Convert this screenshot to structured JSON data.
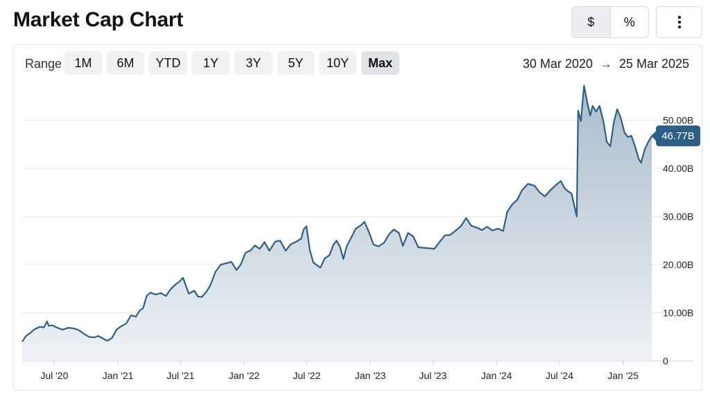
{
  "page": {
    "title": "Market Cap Chart"
  },
  "toggles": [
    {
      "label": "$",
      "active": true
    },
    {
      "label": "%",
      "active": false
    }
  ],
  "menu": {
    "icon": "more-vertical-icon"
  },
  "range": {
    "label": "Range",
    "buttons": [
      {
        "label": "1M",
        "active": false
      },
      {
        "label": "6M",
        "active": false
      },
      {
        "label": "YTD",
        "active": false
      },
      {
        "label": "1Y",
        "active": false
      },
      {
        "label": "3Y",
        "active": false
      },
      {
        "label": "5Y",
        "active": false
      },
      {
        "label": "10Y",
        "active": false
      },
      {
        "label": "Max",
        "active": true
      }
    ],
    "start": "30 Mar 2020",
    "arrow": "→",
    "end": "25 Mar 2025"
  },
  "chart_data": {
    "type": "area",
    "title": "",
    "xlabel": "",
    "ylabel": "",
    "unit": "B",
    "x_range": [
      "2020-03-30",
      "2025-03-25"
    ],
    "ylim": [
      0,
      57
    ],
    "y_ticks": [
      {
        "value": 0,
        "label": "0"
      },
      {
        "value": 10,
        "label": "10.00B"
      },
      {
        "value": 20,
        "label": "20.00B"
      },
      {
        "value": 30,
        "label": "30.00B"
      },
      {
        "value": 40,
        "label": "40.00B"
      },
      {
        "value": 50,
        "label": "50.00B"
      }
    ],
    "x_ticks": [
      {
        "date": "2020-07-01",
        "label": "Jul '20"
      },
      {
        "date": "2021-01-01",
        "label": "Jan '21"
      },
      {
        "date": "2021-07-01",
        "label": "Jul '21"
      },
      {
        "date": "2022-01-01",
        "label": "Jan '22"
      },
      {
        "date": "2022-07-01",
        "label": "Jul '22"
      },
      {
        "date": "2023-01-01",
        "label": "Jan '23"
      },
      {
        "date": "2023-07-01",
        "label": "Jul '23"
      },
      {
        "date": "2024-01-01",
        "label": "Jan '24"
      },
      {
        "date": "2024-07-01",
        "label": "Jul '24"
      },
      {
        "date": "2025-01-01",
        "label": "Jan '25"
      }
    ],
    "grid": true,
    "colors": {
      "line": "#2d5f86",
      "fill_top": "#a9bccc",
      "fill_bottom": "#eef2f6",
      "grid": "#e4e7eb",
      "badge": "#2d5f86"
    },
    "current_value_label": "46.77B",
    "series": [
      {
        "points": [
          [
            "2020-03-30",
            4.0
          ],
          [
            "2020-04-10",
            5.2
          ],
          [
            "2020-04-22",
            5.8
          ],
          [
            "2020-05-05",
            6.6
          ],
          [
            "2020-05-20",
            7.1
          ],
          [
            "2020-06-01",
            7.0
          ],
          [
            "2020-06-10",
            8.2
          ],
          [
            "2020-06-15",
            7.3
          ],
          [
            "2020-06-25",
            7.4
          ],
          [
            "2020-07-10",
            6.9
          ],
          [
            "2020-07-25",
            6.5
          ],
          [
            "2020-08-10",
            6.9
          ],
          [
            "2020-08-25",
            6.8
          ],
          [
            "2020-09-10",
            6.4
          ],
          [
            "2020-09-25",
            5.6
          ],
          [
            "2020-10-10",
            5.0
          ],
          [
            "2020-10-25",
            4.9
          ],
          [
            "2020-11-05",
            5.2
          ],
          [
            "2020-11-20",
            4.6
          ],
          [
            "2020-12-01",
            4.2
          ],
          [
            "2020-12-15",
            4.8
          ],
          [
            "2020-12-28",
            6.5
          ],
          [
            "2021-01-10",
            7.2
          ],
          [
            "2021-01-25",
            7.8
          ],
          [
            "2021-02-08",
            9.5
          ],
          [
            "2021-02-22",
            9.2
          ],
          [
            "2021-03-05",
            10.5
          ],
          [
            "2021-03-15",
            11.0
          ],
          [
            "2021-03-25",
            13.5
          ],
          [
            "2021-04-05",
            14.2
          ],
          [
            "2021-04-20",
            13.8
          ],
          [
            "2021-05-05",
            14.1
          ],
          [
            "2021-05-20",
            13.5
          ],
          [
            "2021-06-01",
            14.8
          ],
          [
            "2021-06-15",
            15.8
          ],
          [
            "2021-06-28",
            16.5
          ],
          [
            "2021-07-08",
            17.3
          ],
          [
            "2021-07-15",
            15.9
          ],
          [
            "2021-07-25",
            14.0
          ],
          [
            "2021-08-10",
            14.6
          ],
          [
            "2021-08-20",
            13.4
          ],
          [
            "2021-09-01",
            13.3
          ],
          [
            "2021-09-15",
            14.5
          ],
          [
            "2021-09-25",
            15.7
          ],
          [
            "2021-10-10",
            18.5
          ],
          [
            "2021-10-25",
            20.0
          ],
          [
            "2021-11-10",
            20.3
          ],
          [
            "2021-11-25",
            20.6
          ],
          [
            "2021-12-10",
            18.9
          ],
          [
            "2021-12-22",
            20.0
          ],
          [
            "2022-01-05",
            22.5
          ],
          [
            "2022-01-20",
            23.0
          ],
          [
            "2022-02-01",
            24.0
          ],
          [
            "2022-02-15",
            23.3
          ],
          [
            "2022-03-01",
            24.7
          ],
          [
            "2022-03-15",
            22.9
          ],
          [
            "2022-04-01",
            24.8
          ],
          [
            "2022-04-15",
            25.0
          ],
          [
            "2022-05-01",
            22.9
          ],
          [
            "2022-05-15",
            24.2
          ],
          [
            "2022-06-01",
            24.8
          ],
          [
            "2022-06-15",
            25.4
          ],
          [
            "2022-06-22",
            27.3
          ],
          [
            "2022-06-30",
            28.0
          ],
          [
            "2022-07-10",
            23.0
          ],
          [
            "2022-07-20",
            20.5
          ],
          [
            "2022-08-01",
            19.8
          ],
          [
            "2022-08-10",
            19.4
          ],
          [
            "2022-08-22",
            21.3
          ],
          [
            "2022-09-05",
            22.0
          ],
          [
            "2022-09-15",
            24.0
          ],
          [
            "2022-09-25",
            25.0
          ],
          [
            "2022-10-05",
            23.8
          ],
          [
            "2022-10-15",
            21.2
          ],
          [
            "2022-10-25",
            23.9
          ],
          [
            "2022-11-05",
            25.4
          ],
          [
            "2022-11-20",
            27.5
          ],
          [
            "2022-12-05",
            28.2
          ],
          [
            "2022-12-15",
            28.9
          ],
          [
            "2022-12-28",
            26.8
          ],
          [
            "2023-01-10",
            24.2
          ],
          [
            "2023-01-25",
            23.8
          ],
          [
            "2023-02-10",
            24.6
          ],
          [
            "2023-02-25",
            26.4
          ],
          [
            "2023-03-10",
            27.3
          ],
          [
            "2023-03-25",
            26.6
          ],
          [
            "2023-04-05",
            23.9
          ],
          [
            "2023-04-20",
            26.6
          ],
          [
            "2023-05-05",
            25.9
          ],
          [
            "2023-05-20",
            23.6
          ],
          [
            "2023-06-05",
            23.5
          ],
          [
            "2023-06-20",
            23.4
          ],
          [
            "2023-07-05",
            23.3
          ],
          [
            "2023-07-20",
            24.7
          ],
          [
            "2023-08-05",
            26.1
          ],
          [
            "2023-08-20",
            26.2
          ],
          [
            "2023-09-05",
            27.1
          ],
          [
            "2023-09-20",
            28.0
          ],
          [
            "2023-10-05",
            29.7
          ],
          [
            "2023-10-20",
            28.1
          ],
          [
            "2023-11-05",
            27.7
          ],
          [
            "2023-11-20",
            27.2
          ],
          [
            "2023-12-05",
            27.9
          ],
          [
            "2023-12-20",
            27.1
          ],
          [
            "2024-01-05",
            27.5
          ],
          [
            "2024-01-20",
            27.0
          ],
          [
            "2024-02-01",
            31.0
          ],
          [
            "2024-02-15",
            32.5
          ],
          [
            "2024-03-01",
            33.5
          ],
          [
            "2024-03-15",
            35.5
          ],
          [
            "2024-04-01",
            36.8
          ],
          [
            "2024-04-20",
            36.4
          ],
          [
            "2024-05-05",
            35.0
          ],
          [
            "2024-05-20",
            34.2
          ],
          [
            "2024-06-05",
            35.5
          ],
          [
            "2024-06-20",
            36.5
          ],
          [
            "2024-07-05",
            37.4
          ],
          [
            "2024-07-15",
            36.0
          ],
          [
            "2024-07-25",
            35.3
          ],
          [
            "2024-08-05",
            34.8
          ],
          [
            "2024-08-15",
            31.6
          ],
          [
            "2024-08-20",
            30.0
          ],
          [
            "2024-08-24",
            52.0
          ],
          [
            "2024-09-01",
            49.8
          ],
          [
            "2024-09-10",
            57.2
          ],
          [
            "2024-09-20",
            53.5
          ],
          [
            "2024-09-28",
            51.0
          ],
          [
            "2024-10-05",
            53.0
          ],
          [
            "2024-10-15",
            51.8
          ],
          [
            "2024-10-25",
            53.0
          ],
          [
            "2024-11-05",
            49.8
          ],
          [
            "2024-11-15",
            45.5
          ],
          [
            "2024-11-25",
            44.6
          ],
          [
            "2024-12-05",
            49.5
          ],
          [
            "2024-12-15",
            52.3
          ],
          [
            "2024-12-25",
            50.6
          ],
          [
            "2025-01-05",
            47.5
          ],
          [
            "2025-01-15",
            46.5
          ],
          [
            "2025-01-25",
            46.8
          ],
          [
            "2025-02-05",
            44.5
          ],
          [
            "2025-02-15",
            42.0
          ],
          [
            "2025-02-22",
            41.2
          ],
          [
            "2025-03-05",
            44.0
          ],
          [
            "2025-03-15",
            45.5
          ],
          [
            "2025-03-25",
            46.77
          ]
        ]
      }
    ]
  }
}
